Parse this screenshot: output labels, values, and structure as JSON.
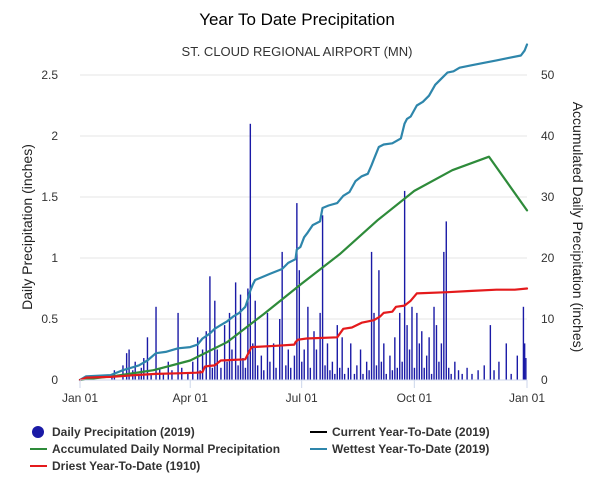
{
  "chart_data": {
    "type": "line",
    "title": "Year To Date Precipitation",
    "subtitle": "ST. CLOUD REGIONAL AIRPORT (MN)",
    "ylabel_left": "Daily Precipitation (inches)",
    "ylabel_right": "Accumulated Daily Precipitation (inches)",
    "ylim_left": [
      0,
      2.5
    ],
    "ylim_right": [
      0,
      50
    ],
    "xlim_days": [
      0,
      365
    ],
    "y_ticks_left": [
      "0",
      "0.5",
      "1",
      "1.5",
      "2",
      "2.5"
    ],
    "y_ticks_right": [
      "0",
      "10",
      "20",
      "30",
      "40",
      "50"
    ],
    "x_ticks": [
      {
        "label": "Jan 01",
        "day": 0
      },
      {
        "label": "Apr 01",
        "day": 90
      },
      {
        "label": "Jul 01",
        "day": 181
      },
      {
        "label": "Oct 01",
        "day": 273
      },
      {
        "label": "Jan 01",
        "day": 365
      }
    ],
    "daily_precipitation_2019": [
      [
        26,
        0.05
      ],
      [
        28,
        0.08
      ],
      [
        35,
        0.12
      ],
      [
        38,
        0.22
      ],
      [
        40,
        0.25
      ],
      [
        43,
        0.08
      ],
      [
        45,
        0.15
      ],
      [
        48,
        0.05
      ],
      [
        50,
        0.1
      ],
      [
        52,
        0.18
      ],
      [
        55,
        0.35
      ],
      [
        58,
        0.04
      ],
      [
        62,
        0.6
      ],
      [
        65,
        0.1
      ],
      [
        68,
        0.05
      ],
      [
        72,
        0.15
      ],
      [
        75,
        0.08
      ],
      [
        80,
        0.55
      ],
      [
        83,
        0.1
      ],
      [
        88,
        0.05
      ],
      [
        92,
        0.15
      ],
      [
        96,
        0.35
      ],
      [
        98,
        0.08
      ],
      [
        100,
        0.25
      ],
      [
        103,
        0.4
      ],
      [
        106,
        0.85
      ],
      [
        108,
        0.1
      ],
      [
        110,
        0.65
      ],
      [
        112,
        0.25
      ],
      [
        115,
        0.1
      ],
      [
        118,
        0.45
      ],
      [
        120,
        0.15
      ],
      [
        122,
        0.55
      ],
      [
        124,
        0.25
      ],
      [
        127,
        0.8
      ],
      [
        129,
        0.12
      ],
      [
        131,
        0.7
      ],
      [
        133,
        0.18
      ],
      [
        135,
        0.1
      ],
      [
        137,
        0.75
      ],
      [
        139,
        2.1
      ],
      [
        141,
        0.3
      ],
      [
        143,
        0.65
      ],
      [
        145,
        0.12
      ],
      [
        148,
        0.2
      ],
      [
        150,
        0.08
      ],
      [
        153,
        0.55
      ],
      [
        155,
        0.15
      ],
      [
        158,
        0.3
      ],
      [
        160,
        0.1
      ],
      [
        163,
        0.5
      ],
      [
        165,
        1.05
      ],
      [
        168,
        0.12
      ],
      [
        170,
        0.25
      ],
      [
        172,
        0.1
      ],
      [
        175,
        0.2
      ],
      [
        177,
        1.45
      ],
      [
        179,
        0.9
      ],
      [
        181,
        0.15
      ],
      [
        183,
        0.25
      ],
      [
        186,
        0.6
      ],
      [
        188,
        0.1
      ],
      [
        191,
        0.4
      ],
      [
        193,
        0.25
      ],
      [
        196,
        0.55
      ],
      [
        198,
        1.35
      ],
      [
        200,
        0.12
      ],
      [
        202,
        0.3
      ],
      [
        204,
        0.08
      ],
      [
        206,
        0.15
      ],
      [
        208,
        0.05
      ],
      [
        210,
        0.45
      ],
      [
        212,
        0.1
      ],
      [
        214,
        0.35
      ],
      [
        216,
        0.05
      ],
      [
        219,
        0.1
      ],
      [
        221,
        0.3
      ],
      [
        224,
        0.05
      ],
      [
        226,
        0.12
      ],
      [
        229,
        0.25
      ],
      [
        231,
        0.05
      ],
      [
        234,
        0.15
      ],
      [
        236,
        0.08
      ],
      [
        238,
        1.05
      ],
      [
        240,
        0.55
      ],
      [
        242,
        0.12
      ],
      [
        244,
        0.9
      ],
      [
        246,
        0.15
      ],
      [
        248,
        0.3
      ],
      [
        250,
        0.05
      ],
      [
        253,
        0.2
      ],
      [
        255,
        0.08
      ],
      [
        257,
        0.35
      ],
      [
        259,
        0.1
      ],
      [
        261,
        0.55
      ],
      [
        263,
        0.15
      ],
      [
        265,
        1.55
      ],
      [
        267,
        0.45
      ],
      [
        269,
        0.25
      ],
      [
        271,
        0.6
      ],
      [
        273,
        0.1
      ],
      [
        275,
        0.55
      ],
      [
        277,
        0.3
      ],
      [
        279,
        0.4
      ],
      [
        281,
        0.1
      ],
      [
        283,
        0.2
      ],
      [
        285,
        0.35
      ],
      [
        287,
        0.05
      ],
      [
        289,
        0.6
      ],
      [
        291,
        0.45
      ],
      [
        293,
        0.15
      ],
      [
        295,
        0.3
      ],
      [
        297,
        1.05
      ],
      [
        299,
        1.3
      ],
      [
        301,
        0.1
      ],
      [
        303,
        0.05
      ],
      [
        306,
        0.15
      ],
      [
        309,
        0.08
      ],
      [
        312,
        0.05
      ],
      [
        316,
        0.1
      ],
      [
        320,
        0.05
      ],
      [
        325,
        0.08
      ],
      [
        330,
        0.12
      ],
      [
        335,
        0.45
      ],
      [
        338,
        0.08
      ],
      [
        342,
        0.15
      ],
      [
        348,
        0.3
      ],
      [
        352,
        0.05
      ],
      [
        357,
        0.2
      ],
      [
        362,
        0.6
      ],
      [
        363,
        0.3
      ],
      [
        364,
        0.18
      ]
    ],
    "series": [
      {
        "name": "Accumulated Daily Normal Precipitation",
        "color": "#2e8b3a",
        "axis": "right",
        "points": [
          [
            0,
            0
          ],
          [
            30,
            0.7
          ],
          [
            60,
            1.6
          ],
          [
            90,
            3.2
          ],
          [
            120,
            6.2
          ],
          [
            150,
            10.8
          ],
          [
            181,
            15.8
          ],
          [
            212,
            20.6
          ],
          [
            243,
            26.2
          ],
          [
            273,
            31
          ],
          [
            304,
            34.4
          ],
          [
            334,
            36.6
          ],
          [
            365,
            27.8
          ]
        ]
      },
      {
        "name": "Wettest Year-To-Date (2019)",
        "color": "#2e86ab",
        "axis": "right",
        "points": [
          [
            0,
            0
          ],
          [
            5,
            0.6
          ],
          [
            25,
            0.8
          ],
          [
            35,
            1.6
          ],
          [
            48,
            2.4
          ],
          [
            55,
            3.2
          ],
          [
            62,
            4.4
          ],
          [
            70,
            4.6
          ],
          [
            80,
            5.2
          ],
          [
            90,
            5.4
          ],
          [
            96,
            5.8
          ],
          [
            100,
            6.8
          ],
          [
            106,
            7.6
          ],
          [
            110,
            8.4
          ],
          [
            115,
            9
          ],
          [
            120,
            9.6
          ],
          [
            125,
            10.4
          ],
          [
            130,
            11
          ],
          [
            135,
            12
          ],
          [
            137,
            13.2
          ],
          [
            139,
            14.6
          ],
          [
            141,
            15.6
          ],
          [
            143,
            16.4
          ],
          [
            148,
            16.8
          ],
          [
            155,
            17.4
          ],
          [
            165,
            18.2
          ],
          [
            170,
            19.2
          ],
          [
            176,
            19.8
          ],
          [
            177,
            21.4
          ],
          [
            180,
            21.8
          ],
          [
            183,
            23.4
          ],
          [
            186,
            24.2
          ],
          [
            190,
            25.4
          ],
          [
            196,
            26
          ],
          [
            198,
            28.2
          ],
          [
            203,
            28.6
          ],
          [
            210,
            29
          ],
          [
            215,
            30.2
          ],
          [
            220,
            30.8
          ],
          [
            225,
            32.6
          ],
          [
            230,
            33.4
          ],
          [
            235,
            33.8
          ],
          [
            238,
            35.2
          ],
          [
            240,
            36.2
          ],
          [
            244,
            38.2
          ],
          [
            248,
            38.6
          ],
          [
            255,
            38.8
          ],
          [
            262,
            39.6
          ],
          [
            265,
            42
          ],
          [
            267,
            42.8
          ],
          [
            270,
            43.2
          ],
          [
            275,
            45
          ],
          [
            280,
            45.6
          ],
          [
            285,
            46.6
          ],
          [
            290,
            48.4
          ],
          [
            295,
            49.4
          ],
          [
            300,
            50.4
          ],
          [
            305,
            50.6
          ],
          [
            310,
            51.2
          ],
          [
            320,
            51.6
          ],
          [
            330,
            52
          ],
          [
            340,
            52.4
          ],
          [
            350,
            52.8
          ],
          [
            360,
            53.2
          ],
          [
            363,
            54
          ],
          [
            365,
            55
          ]
        ]
      },
      {
        "name": "Driest Year-To-Date (1910)",
        "color": "#e41a1c",
        "axis": "right",
        "points": [
          [
            0,
            0
          ],
          [
            5,
            0.4
          ],
          [
            25,
            0.5
          ],
          [
            45,
            0.8
          ],
          [
            62,
            1
          ],
          [
            80,
            1.1
          ],
          [
            95,
            1.2
          ],
          [
            100,
            1.3
          ],
          [
            102,
            2.2
          ],
          [
            105,
            2.3
          ],
          [
            110,
            2.4
          ],
          [
            115,
            3.2
          ],
          [
            135,
            3.4
          ],
          [
            140,
            5.4
          ],
          [
            160,
            5.6
          ],
          [
            175,
            5.8
          ],
          [
            176,
            6.2
          ],
          [
            178,
            6.6
          ],
          [
            185,
            6.8
          ],
          [
            210,
            7
          ],
          [
            215,
            8.4
          ],
          [
            222,
            8.6
          ],
          [
            230,
            9.4
          ],
          [
            240,
            9.8
          ],
          [
            245,
            10.4
          ],
          [
            248,
            11
          ],
          [
            255,
            11.2
          ],
          [
            258,
            12
          ],
          [
            265,
            12.2
          ],
          [
            270,
            13
          ],
          [
            275,
            14.2
          ],
          [
            300,
            14.4
          ],
          [
            320,
            14.6
          ],
          [
            340,
            14.8
          ],
          [
            355,
            14.8
          ],
          [
            365,
            15
          ]
        ]
      },
      {
        "name": "Current Year-To-Date (2019)",
        "color": "#000000",
        "axis": "right",
        "points": []
      }
    ],
    "legend": {
      "placement": "bottom",
      "items": [
        {
          "label": "Daily Precipitation (2019)",
          "color": "#1a1aa6",
          "kind": "dot"
        },
        {
          "label": "Current Year-To-Date (2019)",
          "color": "#000000",
          "kind": "line"
        },
        {
          "label": "Accumulated Daily Normal Precipitation",
          "color": "#2e8b3a",
          "kind": "line"
        },
        {
          "label": "Wettest Year-To-Date (2019)",
          "color": "#2e86ab",
          "kind": "line"
        },
        {
          "label": "Driest Year-To-Date (1910)",
          "color": "#e41a1c",
          "kind": "line"
        }
      ]
    },
    "grid": true
  }
}
